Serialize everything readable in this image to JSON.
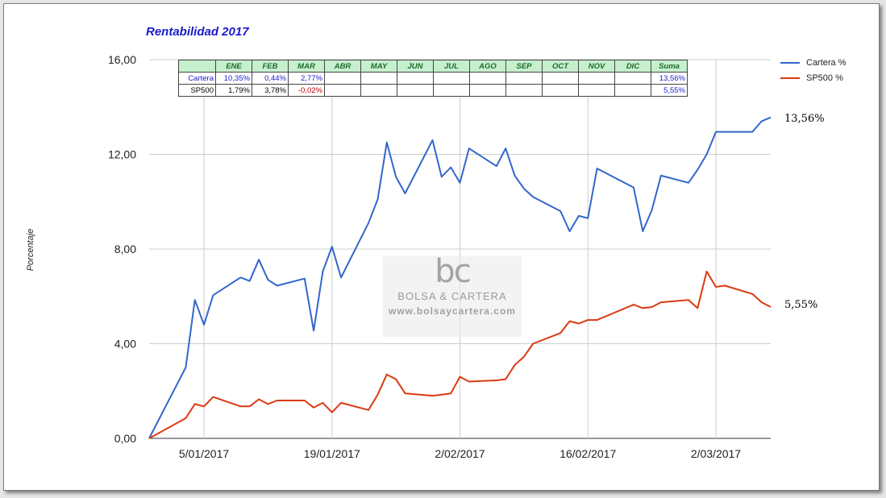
{
  "chart_data": {
    "type": "line",
    "title": "Rentabilidad 2017",
    "ylabel": "Porcentaje",
    "xlabel": "",
    "ylim": [
      0,
      16
    ],
    "yticks": [
      "0,00",
      "4,00",
      "8,00",
      "12,00",
      "16,00"
    ],
    "xtick_labels": [
      "5/01/2017",
      "19/01/2017",
      "2/02/2017",
      "16/02/2017",
      "2/03/2017"
    ],
    "grid": true,
    "legend_position": "top-right",
    "x": [
      "30/12/2016",
      "3/01/2017",
      "4/01/2017",
      "5/01/2017",
      "6/01/2017",
      "9/01/2017",
      "10/01/2017",
      "11/01/2017",
      "12/01/2017",
      "13/01/2017",
      "16/01/2017",
      "17/01/2017",
      "18/01/2017",
      "19/01/2017",
      "20/01/2017",
      "23/01/2017",
      "24/01/2017",
      "25/01/2017",
      "26/01/2017",
      "27/01/2017",
      "30/01/2017",
      "31/01/2017",
      "1/02/2017",
      "2/02/2017",
      "3/02/2017",
      "6/02/2017",
      "7/02/2017",
      "8/02/2017",
      "9/02/2017",
      "10/02/2017",
      "13/02/2017",
      "14/02/2017",
      "15/02/2017",
      "16/02/2017",
      "17/02/2017",
      "21/02/2017",
      "22/02/2017",
      "23/02/2017",
      "24/02/2017",
      "27/02/2017",
      "28/02/2017",
      "1/03/2017",
      "2/03/2017",
      "3/03/2017",
      "6/03/2017",
      "7/03/2017",
      "8/03/2017"
    ],
    "series": [
      {
        "name": "Cartera %",
        "color": "#3366cc",
        "end_label": "13,56%",
        "values": [
          0,
          3.0,
          5.85,
          4.8,
          6.05,
          6.8,
          6.65,
          7.55,
          6.7,
          6.45,
          6.75,
          4.55,
          7.05,
          8.1,
          6.8,
          9.1,
          10.1,
          12.5,
          11.05,
          10.35,
          12.6,
          11.05,
          11.45,
          10.8,
          12.25,
          11.5,
          12.25,
          11.1,
          10.55,
          10.2,
          9.6,
          8.75,
          9.4,
          9.3,
          11.4,
          10.6,
          8.75,
          9.65,
          11.1,
          10.8,
          11.35,
          12.0,
          12.95,
          12.95,
          12.95,
          13.4,
          13.56
        ]
      },
      {
        "name": "SP500 %",
        "color": "#dc3912",
        "end_label": "5,55%",
        "values": [
          0,
          0.85,
          1.45,
          1.35,
          1.75,
          1.35,
          1.35,
          1.65,
          1.45,
          1.6,
          1.6,
          1.3,
          1.5,
          1.1,
          1.5,
          1.2,
          1.85,
          2.7,
          2.5,
          1.9,
          1.8,
          1.85,
          1.9,
          2.6,
          2.4,
          2.45,
          2.5,
          3.1,
          3.45,
          4.0,
          4.45,
          4.95,
          4.85,
          5.0,
          5.0,
          5.65,
          5.5,
          5.55,
          5.75,
          5.85,
          5.5,
          7.05,
          6.4,
          6.45,
          6.1,
          5.75,
          5.55
        ]
      }
    ]
  },
  "table": {
    "headers": [
      "",
      "ENE",
      "FEB",
      "MAR",
      "ABR",
      "MAY",
      "JUN",
      "JUL",
      "AGO",
      "SEP",
      "OCT",
      "NOV",
      "DIC",
      "Suma"
    ],
    "rows": [
      {
        "label": "Cartera",
        "cells": [
          "10,35%",
          "0,44%",
          "2,77%",
          "",
          "",
          "",
          "",
          "",
          "",
          "",
          "",
          "",
          "13,56%"
        ]
      },
      {
        "label": "SP500",
        "cells": [
          "1,79%",
          "3,78%",
          "-0,02%",
          "",
          "",
          "",
          "",
          "",
          "",
          "",
          "",
          "",
          "5,55%"
        ]
      }
    ]
  },
  "watermark": {
    "logo": "bc",
    "name": "BOLSA & CARTERA",
    "url": "www.bolsaycartera.com"
  }
}
